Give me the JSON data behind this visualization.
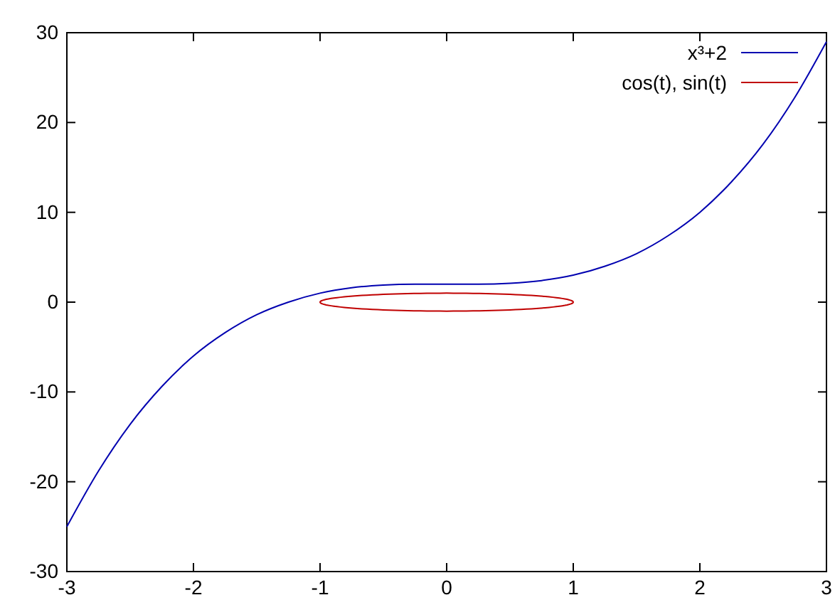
{
  "chart_data": {
    "type": "line",
    "xlim": [
      -3,
      3
    ],
    "ylim": [
      -30,
      30
    ],
    "xticks": [
      -3,
      -2,
      -1,
      0,
      1,
      2,
      3
    ],
    "yticks": [
      -30,
      -20,
      -10,
      0,
      10,
      20,
      30
    ],
    "grid": false,
    "legend": "top right",
    "marker": "none",
    "line_style": "solid",
    "series": [
      {
        "name": "x³+2",
        "color": "#0000b0",
        "x": [
          -3,
          -2.75,
          -2.5,
          -2.25,
          -2,
          -1.75,
          -1.5,
          -1.25,
          -1,
          -0.75,
          -0.5,
          -0.25,
          0,
          0.25,
          0.5,
          0.75,
          1,
          1.25,
          1.5,
          1.75,
          2,
          2.25,
          2.5,
          2.75,
          3
        ],
        "values": [
          -25,
          -18.8,
          -13.6,
          -9.4,
          -6,
          -3.4,
          -1.4,
          0,
          1,
          1.6,
          1.9,
          2,
          2,
          2,
          2.1,
          2.4,
          3,
          4,
          5.4,
          7.4,
          10,
          13.4,
          17.6,
          22.8,
          29
        ]
      },
      {
        "name": "cos(t), sin(t)",
        "color": "#c00000"
      }
    ]
  }
}
